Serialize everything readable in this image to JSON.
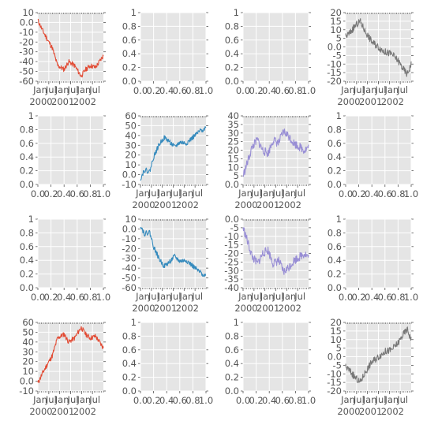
{
  "figure": {
    "style": "ggplot",
    "panel_bg": "#e5e5e5",
    "grid_color": "#ffffff",
    "tick_color": "#555555",
    "colors": {
      "red": "#e24a33",
      "blue": "#348abd",
      "purple": "#988ed5",
      "gray": "#777777"
    }
  },
  "chart_data": [
    {
      "row": 0,
      "col": 0,
      "type": "line",
      "color": "red",
      "ylim": [
        -60,
        10
      ],
      "yticks": [
        -60,
        -50,
        -40,
        -30,
        -20,
        -10,
        0,
        10
      ],
      "xaxis": "date",
      "seed": 11,
      "anchors": [
        [
          0,
          2
        ],
        [
          0.07,
          -8
        ],
        [
          0.15,
          -18
        ],
        [
          0.22,
          -26
        ],
        [
          0.3,
          -44
        ],
        [
          0.4,
          -48
        ],
        [
          0.47,
          -40
        ],
        [
          0.56,
          -44
        ],
        [
          0.66,
          -55
        ],
        [
          0.73,
          -48
        ],
        [
          0.8,
          -44
        ],
        [
          0.88,
          -46
        ],
        [
          1.0,
          -34
        ]
      ],
      "noise": 2.5
    },
    {
      "row": 0,
      "col": 1,
      "type": "empty",
      "ylim": [
        0,
        1
      ],
      "yticks": [
        0.0,
        0.2,
        0.4,
        0.6,
        0.8,
        1.0
      ]
    },
    {
      "row": 0,
      "col": 2,
      "type": "empty",
      "ylim": [
        0,
        1
      ],
      "yticks": [
        0.0,
        0.2,
        0.4,
        0.6,
        0.8,
        1.0
      ]
    },
    {
      "row": 0,
      "col": 3,
      "type": "line",
      "color": "gray",
      "ylim": [
        -20,
        20
      ],
      "yticks": [
        -20,
        -15,
        -10,
        -5,
        0,
        5,
        10,
        15,
        20
      ],
      "xaxis": "date",
      "seed": 44,
      "anchors": [
        [
          0,
          6
        ],
        [
          0.06,
          8
        ],
        [
          0.14,
          12
        ],
        [
          0.22,
          15
        ],
        [
          0.3,
          9
        ],
        [
          0.4,
          3
        ],
        [
          0.5,
          0
        ],
        [
          0.6,
          -3
        ],
        [
          0.7,
          -4
        ],
        [
          0.8,
          -8
        ],
        [
          0.88,
          -13
        ],
        [
          0.94,
          -16
        ],
        [
          1.0,
          -10
        ]
      ],
      "noise": 2.0
    },
    {
      "row": 1,
      "col": 0,
      "type": "empty",
      "ylim": [
        0,
        1
      ],
      "yticks": [
        0.0,
        0.2,
        0.4,
        0.6,
        0.8,
        1.0
      ],
      "xticks": [
        "0.0",
        "0.2",
        "0.4",
        "0.6",
        "0.8",
        "1.0"
      ]
    },
    {
      "row": 1,
      "col": 1,
      "type": "line",
      "color": "blue",
      "ylim": [
        -10,
        60
      ],
      "yticks": [
        -10,
        0,
        10,
        20,
        30,
        40,
        50,
        60
      ],
      "xaxis": "date",
      "seed": 22,
      "anchors": [
        [
          0,
          -4
        ],
        [
          0.06,
          5
        ],
        [
          0.14,
          3
        ],
        [
          0.2,
          18
        ],
        [
          0.28,
          30
        ],
        [
          0.36,
          38
        ],
        [
          0.44,
          34
        ],
        [
          0.52,
          28
        ],
        [
          0.6,
          33
        ],
        [
          0.7,
          32
        ],
        [
          0.8,
          38
        ],
        [
          0.9,
          44
        ],
        [
          1.0,
          48
        ]
      ],
      "noise": 2.5
    },
    {
      "row": 1,
      "col": 2,
      "type": "line",
      "color": "purple",
      "ylim": [
        0,
        40
      ],
      "yticks": [
        0,
        5,
        10,
        15,
        20,
        25,
        30,
        35,
        40
      ],
      "xaxis": "date",
      "seed": 33,
      "anchors": [
        [
          0,
          5
        ],
        [
          0.06,
          12
        ],
        [
          0.14,
          22
        ],
        [
          0.22,
          26
        ],
        [
          0.3,
          20
        ],
        [
          0.38,
          18
        ],
        [
          0.46,
          26
        ],
        [
          0.54,
          24
        ],
        [
          0.62,
          31
        ],
        [
          0.7,
          28
        ],
        [
          0.78,
          24
        ],
        [
          0.86,
          22
        ],
        [
          0.94,
          20
        ],
        [
          1.0,
          22
        ]
      ],
      "noise": 2.5
    },
    {
      "row": 1,
      "col": 3,
      "type": "empty",
      "ylim": [
        0,
        1
      ],
      "yticks": [
        0.0,
        0.2,
        0.4,
        0.6,
        0.8,
        1.0
      ],
      "xticks": [
        "0.0",
        "0.2",
        "0.4",
        "0.6",
        "0.8",
        "1.0"
      ]
    },
    {
      "row": 2,
      "col": 0,
      "type": "empty",
      "ylim": [
        0,
        1
      ],
      "yticks": [
        0.0,
        0.2,
        0.4,
        0.6,
        0.8,
        1.0
      ],
      "xticks": [
        "0.0",
        "0.2",
        "0.4",
        "0.6",
        "0.8",
        "1.0"
      ]
    },
    {
      "row": 2,
      "col": 1,
      "type": "line",
      "color": "blue",
      "ylim": [
        -60,
        10
      ],
      "yticks": [
        -60,
        -50,
        -40,
        -30,
        -20,
        -10,
        0,
        10
      ],
      "xaxis": "date",
      "seed": 22,
      "anchors": [
        [
          0,
          4
        ],
        [
          0.06,
          -5
        ],
        [
          0.14,
          -3
        ],
        [
          0.2,
          -18
        ],
        [
          0.28,
          -30
        ],
        [
          0.36,
          -38
        ],
        [
          0.44,
          -34
        ],
        [
          0.52,
          -28
        ],
        [
          0.6,
          -33
        ],
        [
          0.7,
          -32
        ],
        [
          0.8,
          -38
        ],
        [
          0.9,
          -44
        ],
        [
          1.0,
          -48
        ]
      ],
      "noise": 2.5
    },
    {
      "row": 2,
      "col": 2,
      "type": "line",
      "color": "purple",
      "ylim": [
        -40,
        0
      ],
      "yticks": [
        -40,
        -35,
        -30,
        -25,
        -20,
        -15,
        -10,
        -5,
        0
      ],
      "xaxis": "date",
      "seed": 33,
      "anchors": [
        [
          0,
          -5
        ],
        [
          0.06,
          -12
        ],
        [
          0.14,
          -22
        ],
        [
          0.22,
          -26
        ],
        [
          0.3,
          -20
        ],
        [
          0.38,
          -18
        ],
        [
          0.46,
          -26
        ],
        [
          0.54,
          -24
        ],
        [
          0.62,
          -31
        ],
        [
          0.7,
          -28
        ],
        [
          0.78,
          -24
        ],
        [
          0.86,
          -22
        ],
        [
          0.94,
          -20
        ],
        [
          1.0,
          -22
        ]
      ],
      "noise": 2.5
    },
    {
      "row": 2,
      "col": 3,
      "type": "empty",
      "ylim": [
        0,
        1
      ],
      "yticks": [
        0.0,
        0.2,
        0.4,
        0.6,
        0.8,
        1.0
      ],
      "xticks": [
        "0.0",
        "0.2",
        "0.4",
        "0.6",
        "0.8",
        "1.0"
      ]
    },
    {
      "row": 3,
      "col": 0,
      "type": "line",
      "color": "red",
      "ylim": [
        -10,
        60
      ],
      "yticks": [
        -10,
        0,
        10,
        20,
        30,
        40,
        50,
        60
      ],
      "xaxis": "date",
      "seed": 11,
      "anchors": [
        [
          0,
          -2
        ],
        [
          0.07,
          8
        ],
        [
          0.15,
          18
        ],
        [
          0.22,
          26
        ],
        [
          0.3,
          44
        ],
        [
          0.4,
          48
        ],
        [
          0.47,
          40
        ],
        [
          0.56,
          44
        ],
        [
          0.66,
          55
        ],
        [
          0.73,
          48
        ],
        [
          0.8,
          44
        ],
        [
          0.88,
          46
        ],
        [
          1.0,
          34
        ]
      ],
      "noise": 2.5
    },
    {
      "row": 3,
      "col": 1,
      "type": "empty",
      "ylim": [
        0,
        1
      ],
      "yticks": [
        0.0,
        0.2,
        0.4,
        0.6,
        0.8,
        1.0
      ],
      "xticks": [
        "0.0",
        "0.2",
        "0.4",
        "0.6",
        "0.8",
        "1.0"
      ]
    },
    {
      "row": 3,
      "col": 2,
      "type": "empty",
      "ylim": [
        0,
        1
      ],
      "yticks": [
        0.0,
        0.2,
        0.4,
        0.6,
        0.8,
        1.0
      ],
      "xticks": [
        "0.0",
        "0.2",
        "0.4",
        "0.6",
        "0.8",
        "1.0"
      ]
    },
    {
      "row": 3,
      "col": 3,
      "type": "line",
      "color": "gray",
      "ylim": [
        -20,
        20
      ],
      "yticks": [
        -20,
        -15,
        -10,
        -5,
        0,
        5,
        10,
        15,
        20
      ],
      "xaxis": "date",
      "seed": 44,
      "anchors": [
        [
          0,
          -6
        ],
        [
          0.06,
          -8
        ],
        [
          0.14,
          -12
        ],
        [
          0.22,
          -15
        ],
        [
          0.3,
          -9
        ],
        [
          0.4,
          -3
        ],
        [
          0.5,
          0
        ],
        [
          0.6,
          3
        ],
        [
          0.7,
          4
        ],
        [
          0.8,
          8
        ],
        [
          0.88,
          13
        ],
        [
          0.94,
          16
        ],
        [
          1.0,
          10
        ]
      ],
      "noise": 2.0
    }
  ],
  "date_axis": {
    "month_labels": [
      "Jan",
      "Jul",
      "Jan",
      "Jul",
      "Jan",
      "Jul"
    ],
    "year_labels": [
      "2000",
      "2001",
      "2002"
    ]
  }
}
